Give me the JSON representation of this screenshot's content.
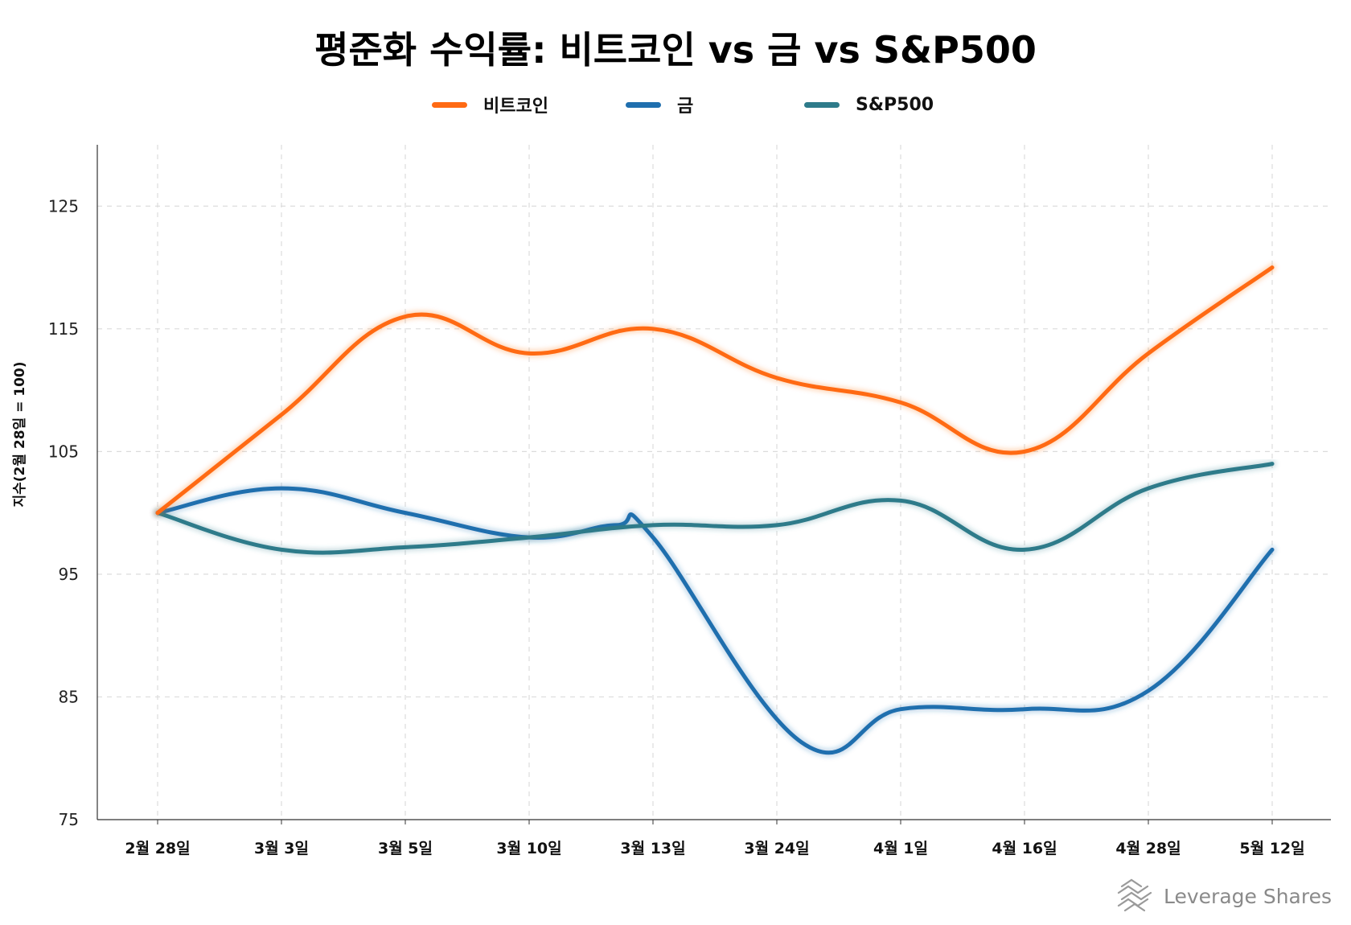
{
  "chart_data": {
    "type": "line",
    "title": "평준화 수익률: 비트코인 vs 금 vs S&P500",
    "ylabel": "지수(2월 28일 = 100)",
    "xlabel": "",
    "categories": [
      "2월 28일",
      "3월 3일",
      "3월 5일",
      "3월 10일",
      "3월 13일",
      "3월 24일",
      "4월 1일",
      "4월 16일",
      "4월 28일",
      "5월 12일"
    ],
    "ylim": [
      75,
      130
    ],
    "yticks": [
      75,
      85,
      95,
      105,
      115,
      125
    ],
    "grid": true,
    "legend_position": "top-center",
    "series": [
      {
        "name": "비트코인",
        "color": "#ff6a13",
        "points": [
          [
            0,
            100
          ],
          [
            1,
            108
          ],
          [
            2,
            116
          ],
          [
            3,
            113
          ],
          [
            4,
            115
          ],
          [
            5,
            111
          ],
          [
            6,
            109
          ],
          [
            7,
            105
          ],
          [
            8,
            113
          ],
          [
            9,
            120
          ]
        ]
      },
      {
        "name": "금",
        "color": "#1f6fae",
        "points": [
          [
            0,
            100
          ],
          [
            1,
            102
          ],
          [
            2,
            100
          ],
          [
            3,
            98
          ],
          [
            3.7,
            99
          ],
          [
            4,
            98
          ],
          [
            5.2,
            81.3
          ],
          [
            6,
            84
          ],
          [
            7,
            84
          ],
          [
            8,
            85.5
          ],
          [
            9,
            97
          ]
        ]
      },
      {
        "name": "S&P500",
        "color": "#2e7b8a",
        "points": [
          [
            0,
            100
          ],
          [
            1,
            97
          ],
          [
            2,
            97.2
          ],
          [
            3,
            98
          ],
          [
            4,
            99
          ],
          [
            5,
            99
          ],
          [
            6,
            101
          ],
          [
            7,
            97
          ],
          [
            8,
            102
          ],
          [
            9,
            104
          ]
        ]
      }
    ]
  },
  "watermark": {
    "text": "Leverage Shares",
    "icon": "leverage-shares-logo-icon"
  }
}
